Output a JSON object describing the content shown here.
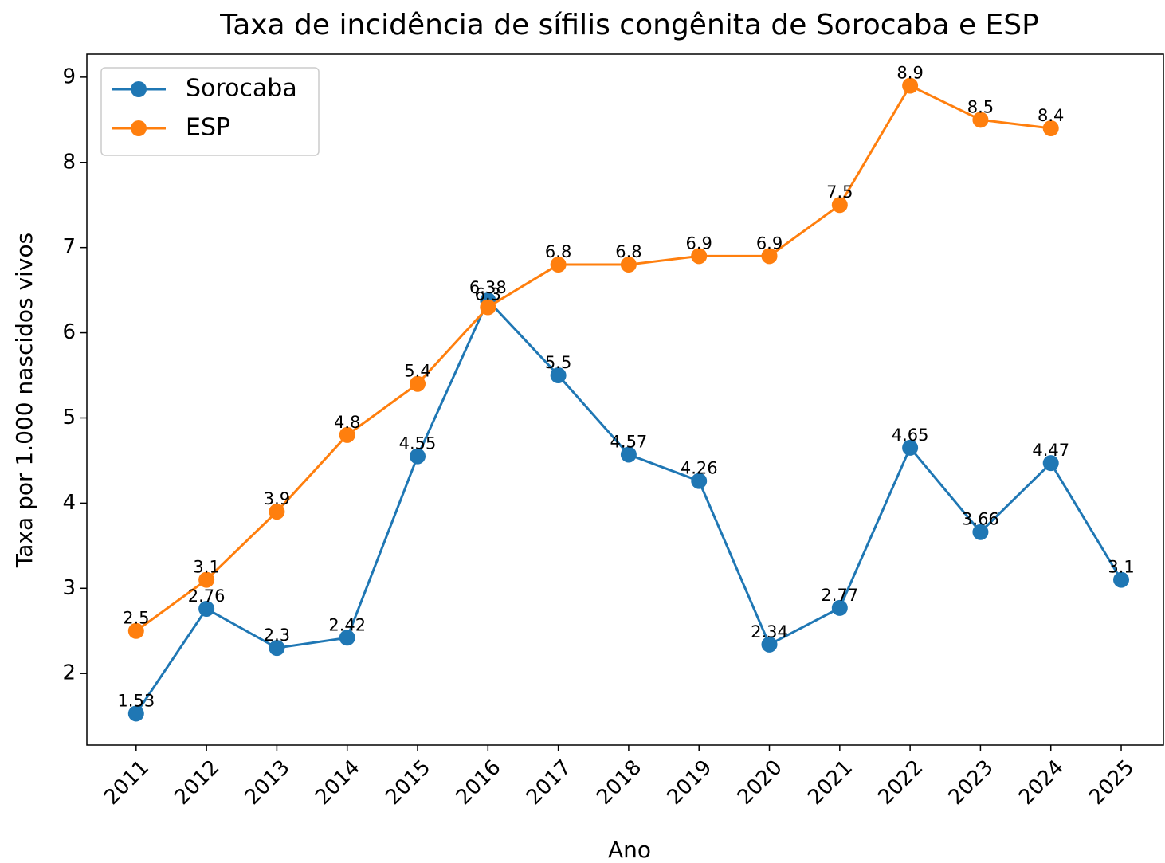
{
  "chart_data": {
    "type": "line",
    "title": "Taxa de incidência de sífilis congênita de Sorocaba e ESP",
    "x_label": "Ano",
    "y_label": "Taxa por 1.000 nascidos vivos",
    "x": [
      2011,
      2012,
      2013,
      2014,
      2015,
      2016,
      2017,
      2018,
      2019,
      2020,
      2021,
      2022,
      2023,
      2024,
      2025
    ],
    "series": [
      {
        "name": "Sorocaba",
        "color": "#1f77b4",
        "values": [
          1.53,
          2.76,
          2.3,
          2.42,
          4.55,
          6.38,
          5.5,
          4.57,
          4.26,
          2.34,
          2.77,
          4.65,
          3.66,
          4.47,
          3.1
        ]
      },
      {
        "name": "ESP",
        "color": "#ff7f0e",
        "values": [
          2.5,
          3.1,
          3.9,
          4.8,
          5.4,
          6.3,
          6.8,
          6.8,
          6.9,
          6.9,
          7.5,
          8.9,
          8.5,
          8.4,
          null
        ]
      }
    ],
    "xlim": [
      2010.3,
      2025.6
    ],
    "ylim": [
      1.16,
      9.27
    ],
    "xticks": [
      2011,
      2012,
      2013,
      2014,
      2015,
      2016,
      2017,
      2018,
      2019,
      2020,
      2021,
      2022,
      2023,
      2024,
      2025
    ],
    "yticks": [
      2,
      3,
      4,
      5,
      6,
      7,
      8,
      9
    ],
    "legend": "upper left",
    "data_labels": true
  }
}
